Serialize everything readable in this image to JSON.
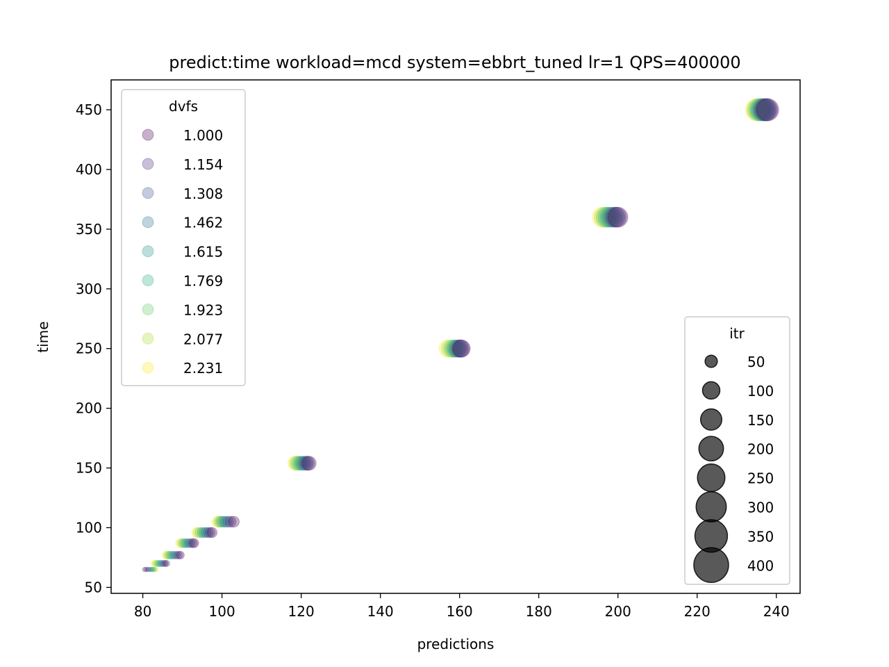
{
  "chart_data": {
    "type": "scatter",
    "title": "predict:time workload=mcd system=ebbrt_tuned lr=1 QPS=400000",
    "xlabel": "predictions",
    "ylabel": "time",
    "xlim": [
      72,
      246
    ],
    "ylim": [
      45,
      475
    ],
    "xticks": [
      80,
      100,
      120,
      140,
      160,
      180,
      200,
      220,
      240
    ],
    "yticks": [
      50,
      100,
      150,
      200,
      250,
      300,
      350,
      400,
      450
    ],
    "grid": false,
    "colormap": "viridis",
    "color_legend": {
      "title": "dvfs",
      "placement": "upper left",
      "entries": [
        {
          "label": "1.000",
          "color": "#440154"
        },
        {
          "label": "1.154",
          "color": "#472d7b"
        },
        {
          "label": "1.308",
          "color": "#3b528b"
        },
        {
          "label": "1.462",
          "color": "#2c728e"
        },
        {
          "label": "1.615",
          "color": "#21918c"
        },
        {
          "label": "1.769",
          "color": "#28ae80"
        },
        {
          "label": "1.923",
          "color": "#5ec962"
        },
        {
          "label": "2.077",
          "color": "#addc30"
        },
        {
          "label": "2.231",
          "color": "#fde725"
        }
      ]
    },
    "size_legend": {
      "title": "itr",
      "placement": "lower right",
      "entries": [
        {
          "label": "50",
          "value": 50
        },
        {
          "label": "100",
          "value": 100
        },
        {
          "label": "150",
          "value": 150
        },
        {
          "label": "200",
          "value": 200
        },
        {
          "label": "250",
          "value": 250
        },
        {
          "label": "300",
          "value": 300
        },
        {
          "label": "350",
          "value": 350
        },
        {
          "label": "400",
          "value": 400
        }
      ]
    },
    "clusters": [
      {
        "itr": 10,
        "time": 65,
        "x": [
          80.5,
          81.0,
          81.4,
          81.8,
          82.2,
          82.5,
          82.8,
          83.1,
          83.3
        ]
      },
      {
        "itr": 20,
        "time": 70,
        "x": [
          86.0,
          85.6,
          85.2,
          84.8,
          84.4,
          84.0,
          83.6,
          83.2,
          82.8
        ]
      },
      {
        "itr": 30,
        "time": 77,
        "x": [
          89.5,
          89.0,
          88.5,
          88.0,
          87.5,
          87.0,
          86.6,
          86.2,
          85.8
        ]
      },
      {
        "itr": 40,
        "time": 87,
        "x": [
          93.0,
          92.6,
          92.1,
          91.6,
          91.1,
          90.6,
          90.2,
          89.8,
          89.4
        ]
      },
      {
        "itr": 50,
        "time": 96,
        "x": [
          97.5,
          97.0,
          96.5,
          96.0,
          95.5,
          95.0,
          94.5,
          94.0,
          93.6
        ]
      },
      {
        "itr": 60,
        "time": 105,
        "x": [
          103.0,
          102.2,
          101.6,
          101.0,
          100.5,
          100.0,
          99.6,
          99.2,
          98.8
        ]
      },
      {
        "itr": 100,
        "time": 154,
        "x": [
          122.0,
          121.6,
          121.2,
          120.7,
          120.2,
          119.7,
          119.2,
          118.8,
          118.4
        ]
      },
      {
        "itr": 150,
        "time": 250,
        "x": [
          160.5,
          160.3,
          160.0,
          159.6,
          159.2,
          158.7,
          158.2,
          157.6,
          157.0
        ]
      },
      {
        "itr": 200,
        "time": 360,
        "x": [
          200.0,
          199.6,
          199.2,
          198.7,
          198.1,
          197.5,
          197.0,
          196.5,
          196.0
        ]
      },
      {
        "itr": 250,
        "time": 450,
        "x": [
          237.8,
          237.5,
          237.2,
          236.9,
          236.5,
          236.1,
          235.7,
          235.3,
          235.0
        ]
      }
    ]
  }
}
